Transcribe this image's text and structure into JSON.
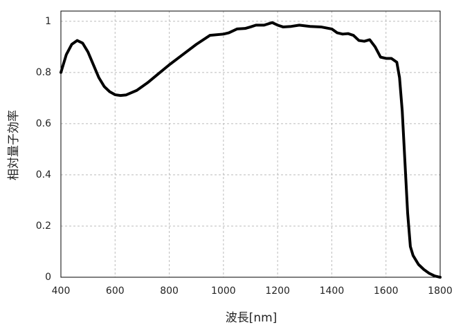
{
  "chart_data": {
    "type": "line",
    "xlabel": "波長[nm]",
    "ylabel": "相対量子効率",
    "x": [
      400,
      420,
      440,
      460,
      480,
      500,
      520,
      540,
      560,
      580,
      600,
      620,
      640,
      680,
      720,
      760,
      800,
      850,
      900,
      950,
      1000,
      1020,
      1050,
      1080,
      1100,
      1120,
      1150,
      1180,
      1200,
      1220,
      1250,
      1280,
      1320,
      1360,
      1400,
      1420,
      1440,
      1460,
      1480,
      1500,
      1520,
      1540,
      1560,
      1580,
      1600,
      1620,
      1640,
      1650,
      1660,
      1670,
      1680,
      1690,
      1700,
      1720,
      1740,
      1760,
      1780,
      1800
    ],
    "series": [
      {
        "color": "#000000",
        "values": [
          0.8,
          0.87,
          0.91,
          0.925,
          0.915,
          0.88,
          0.83,
          0.78,
          0.745,
          0.725,
          0.713,
          0.71,
          0.712,
          0.73,
          0.76,
          0.795,
          0.83,
          0.87,
          0.91,
          0.945,
          0.95,
          0.955,
          0.97,
          0.972,
          0.978,
          0.985,
          0.985,
          0.995,
          0.985,
          0.978,
          0.98,
          0.985,
          0.98,
          0.978,
          0.97,
          0.955,
          0.95,
          0.952,
          0.945,
          0.925,
          0.922,
          0.928,
          0.9,
          0.86,
          0.855,
          0.855,
          0.84,
          0.78,
          0.65,
          0.45,
          0.25,
          0.12,
          0.085,
          0.05,
          0.03,
          0.015,
          0.005,
          0.0
        ]
      }
    ],
    "xlim": [
      400,
      1800
    ],
    "ylim": [
      0,
      1.04
    ],
    "xticks": [
      400,
      600,
      800,
      1000,
      1200,
      1400,
      1600,
      1800
    ],
    "yticks": [
      0,
      0.2,
      0.4,
      0.6,
      0.8,
      1
    ],
    "grid": true
  }
}
